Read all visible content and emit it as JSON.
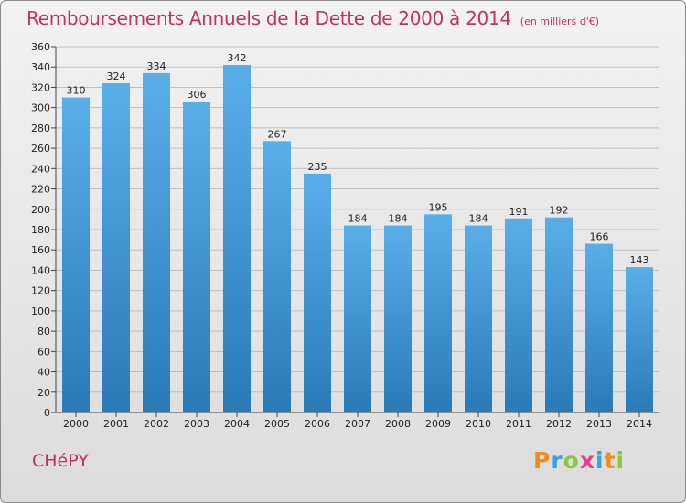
{
  "title": "Remboursements Annuels de la Dette de 2000 à 2014",
  "subtitle": "(en milliers d'€)",
  "town": "CHéPY",
  "logo": {
    "text": "Proxiti",
    "letters": [
      {
        "ch": "P",
        "color": "#f28c1c"
      },
      {
        "ch": "r",
        "color": "#3aa0de"
      },
      {
        "ch": "o",
        "color": "#8cc63f"
      },
      {
        "ch": "x",
        "color": "#e83e8c"
      },
      {
        "ch": "i",
        "color": "#3aa0de"
      },
      {
        "ch": "t",
        "color": "#f28c1c"
      },
      {
        "ch": "i",
        "color": "#8cc63f"
      }
    ]
  },
  "colors": {
    "title": "#c8325a",
    "bar_top": "#5aaee8",
    "bar_bottom": "#2a7ab8",
    "grid": "#c0c0c0"
  },
  "chart_data": {
    "type": "bar",
    "title": "Remboursements Annuels de la Dette de 2000 à 2014",
    "xlabel": "",
    "ylabel": "",
    "ylim": [
      0,
      360
    ],
    "ytick_step": 20,
    "grid": true,
    "categories": [
      "2000",
      "2001",
      "2002",
      "2003",
      "2004",
      "2005",
      "2006",
      "2007",
      "2008",
      "2009",
      "2010",
      "2011",
      "2012",
      "2013",
      "2014"
    ],
    "values": [
      310,
      324,
      334,
      306,
      342,
      267,
      235,
      184,
      184,
      195,
      184,
      191,
      192,
      166,
      143
    ]
  }
}
